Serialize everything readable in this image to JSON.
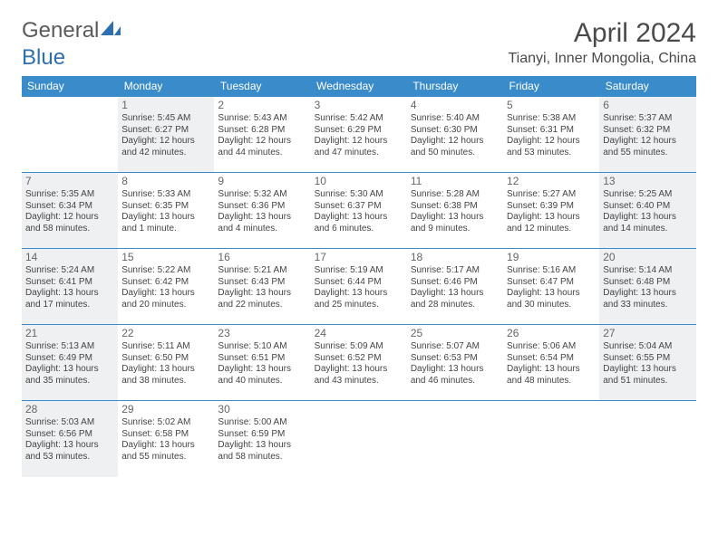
{
  "logo": {
    "text1": "General",
    "text2": "Blue"
  },
  "title": "April 2024",
  "location": "Tianyi, Inner Mongolia, China",
  "header_bg": "#3a8bc9",
  "days": [
    "Sunday",
    "Monday",
    "Tuesday",
    "Wednesday",
    "Thursday",
    "Friday",
    "Saturday"
  ],
  "weeks": [
    [
      null,
      {
        "n": "1",
        "sr": "Sunrise: 5:45 AM",
        "ss": "Sunset: 6:27 PM",
        "d1": "Daylight: 12 hours",
        "d2": "and 42 minutes.",
        "sh": true
      },
      {
        "n": "2",
        "sr": "Sunrise: 5:43 AM",
        "ss": "Sunset: 6:28 PM",
        "d1": "Daylight: 12 hours",
        "d2": "and 44 minutes.",
        "sh": false
      },
      {
        "n": "3",
        "sr": "Sunrise: 5:42 AM",
        "ss": "Sunset: 6:29 PM",
        "d1": "Daylight: 12 hours",
        "d2": "and 47 minutes.",
        "sh": false
      },
      {
        "n": "4",
        "sr": "Sunrise: 5:40 AM",
        "ss": "Sunset: 6:30 PM",
        "d1": "Daylight: 12 hours",
        "d2": "and 50 minutes.",
        "sh": false
      },
      {
        "n": "5",
        "sr": "Sunrise: 5:38 AM",
        "ss": "Sunset: 6:31 PM",
        "d1": "Daylight: 12 hours",
        "d2": "and 53 minutes.",
        "sh": false
      },
      {
        "n": "6",
        "sr": "Sunrise: 5:37 AM",
        "ss": "Sunset: 6:32 PM",
        "d1": "Daylight: 12 hours",
        "d2": "and 55 minutes.",
        "sh": true
      }
    ],
    [
      {
        "n": "7",
        "sr": "Sunrise: 5:35 AM",
        "ss": "Sunset: 6:34 PM",
        "d1": "Daylight: 12 hours",
        "d2": "and 58 minutes.",
        "sh": true
      },
      {
        "n": "8",
        "sr": "Sunrise: 5:33 AM",
        "ss": "Sunset: 6:35 PM",
        "d1": "Daylight: 13 hours",
        "d2": "and 1 minute.",
        "sh": false
      },
      {
        "n": "9",
        "sr": "Sunrise: 5:32 AM",
        "ss": "Sunset: 6:36 PM",
        "d1": "Daylight: 13 hours",
        "d2": "and 4 minutes.",
        "sh": false
      },
      {
        "n": "10",
        "sr": "Sunrise: 5:30 AM",
        "ss": "Sunset: 6:37 PM",
        "d1": "Daylight: 13 hours",
        "d2": "and 6 minutes.",
        "sh": false
      },
      {
        "n": "11",
        "sr": "Sunrise: 5:28 AM",
        "ss": "Sunset: 6:38 PM",
        "d1": "Daylight: 13 hours",
        "d2": "and 9 minutes.",
        "sh": false
      },
      {
        "n": "12",
        "sr": "Sunrise: 5:27 AM",
        "ss": "Sunset: 6:39 PM",
        "d1": "Daylight: 13 hours",
        "d2": "and 12 minutes.",
        "sh": false
      },
      {
        "n": "13",
        "sr": "Sunrise: 5:25 AM",
        "ss": "Sunset: 6:40 PM",
        "d1": "Daylight: 13 hours",
        "d2": "and 14 minutes.",
        "sh": true
      }
    ],
    [
      {
        "n": "14",
        "sr": "Sunrise: 5:24 AM",
        "ss": "Sunset: 6:41 PM",
        "d1": "Daylight: 13 hours",
        "d2": "and 17 minutes.",
        "sh": true
      },
      {
        "n": "15",
        "sr": "Sunrise: 5:22 AM",
        "ss": "Sunset: 6:42 PM",
        "d1": "Daylight: 13 hours",
        "d2": "and 20 minutes.",
        "sh": false
      },
      {
        "n": "16",
        "sr": "Sunrise: 5:21 AM",
        "ss": "Sunset: 6:43 PM",
        "d1": "Daylight: 13 hours",
        "d2": "and 22 minutes.",
        "sh": false
      },
      {
        "n": "17",
        "sr": "Sunrise: 5:19 AM",
        "ss": "Sunset: 6:44 PM",
        "d1": "Daylight: 13 hours",
        "d2": "and 25 minutes.",
        "sh": false
      },
      {
        "n": "18",
        "sr": "Sunrise: 5:17 AM",
        "ss": "Sunset: 6:46 PM",
        "d1": "Daylight: 13 hours",
        "d2": "and 28 minutes.",
        "sh": false
      },
      {
        "n": "19",
        "sr": "Sunrise: 5:16 AM",
        "ss": "Sunset: 6:47 PM",
        "d1": "Daylight: 13 hours",
        "d2": "and 30 minutes.",
        "sh": false
      },
      {
        "n": "20",
        "sr": "Sunrise: 5:14 AM",
        "ss": "Sunset: 6:48 PM",
        "d1": "Daylight: 13 hours",
        "d2": "and 33 minutes.",
        "sh": true
      }
    ],
    [
      {
        "n": "21",
        "sr": "Sunrise: 5:13 AM",
        "ss": "Sunset: 6:49 PM",
        "d1": "Daylight: 13 hours",
        "d2": "and 35 minutes.",
        "sh": true
      },
      {
        "n": "22",
        "sr": "Sunrise: 5:11 AM",
        "ss": "Sunset: 6:50 PM",
        "d1": "Daylight: 13 hours",
        "d2": "and 38 minutes.",
        "sh": false
      },
      {
        "n": "23",
        "sr": "Sunrise: 5:10 AM",
        "ss": "Sunset: 6:51 PM",
        "d1": "Daylight: 13 hours",
        "d2": "and 40 minutes.",
        "sh": false
      },
      {
        "n": "24",
        "sr": "Sunrise: 5:09 AM",
        "ss": "Sunset: 6:52 PM",
        "d1": "Daylight: 13 hours",
        "d2": "and 43 minutes.",
        "sh": false
      },
      {
        "n": "25",
        "sr": "Sunrise: 5:07 AM",
        "ss": "Sunset: 6:53 PM",
        "d1": "Daylight: 13 hours",
        "d2": "and 46 minutes.",
        "sh": false
      },
      {
        "n": "26",
        "sr": "Sunrise: 5:06 AM",
        "ss": "Sunset: 6:54 PM",
        "d1": "Daylight: 13 hours",
        "d2": "and 48 minutes.",
        "sh": false
      },
      {
        "n": "27",
        "sr": "Sunrise: 5:04 AM",
        "ss": "Sunset: 6:55 PM",
        "d1": "Daylight: 13 hours",
        "d2": "and 51 minutes.",
        "sh": true
      }
    ],
    [
      {
        "n": "28",
        "sr": "Sunrise: 5:03 AM",
        "ss": "Sunset: 6:56 PM",
        "d1": "Daylight: 13 hours",
        "d2": "and 53 minutes.",
        "sh": true
      },
      {
        "n": "29",
        "sr": "Sunrise: 5:02 AM",
        "ss": "Sunset: 6:58 PM",
        "d1": "Daylight: 13 hours",
        "d2": "and 55 minutes.",
        "sh": false
      },
      {
        "n": "30",
        "sr": "Sunrise: 5:00 AM",
        "ss": "Sunset: 6:59 PM",
        "d1": "Daylight: 13 hours",
        "d2": "and 58 minutes.",
        "sh": false
      },
      null,
      null,
      null,
      null
    ]
  ]
}
